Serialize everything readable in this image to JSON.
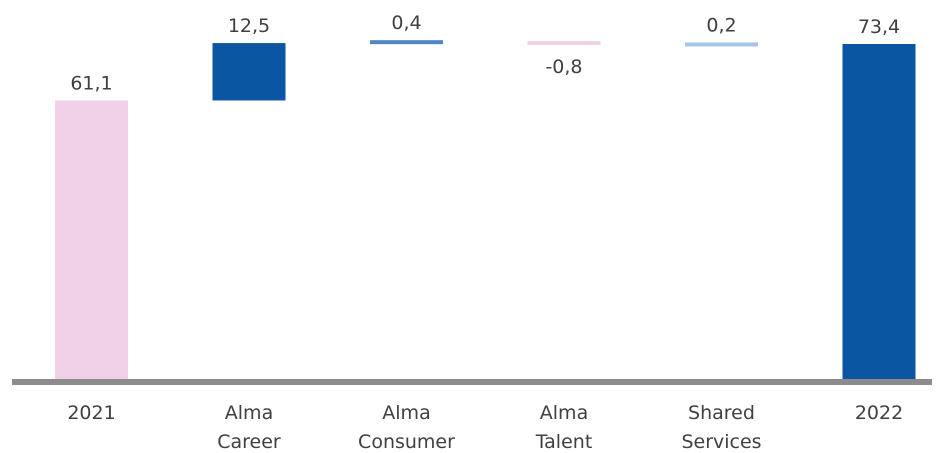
{
  "chart_data": {
    "type": "bar",
    "subtype": "waterfall",
    "title": "",
    "xlabel": "",
    "ylabel": "",
    "ylim": [
      0,
      75
    ],
    "grid": false,
    "legend": "none",
    "categories": [
      [
        "2021"
      ],
      [
        "Alma",
        "Career"
      ],
      [
        "Alma",
        "Consumer"
      ],
      [
        "Alma",
        "Talent"
      ],
      [
        "Shared",
        "Services"
      ],
      [
        "2022"
      ]
    ],
    "bars": [
      {
        "kind": "total",
        "value": 61.1,
        "label": "61,1",
        "color": "#f1d1e8"
      },
      {
        "kind": "delta",
        "value": 12.5,
        "label": "12,5",
        "color": "#0b56a3"
      },
      {
        "kind": "delta",
        "value": 0.4,
        "label": "0,4",
        "color": "#4f87c6"
      },
      {
        "kind": "delta",
        "value": -0.8,
        "label": "-0,8",
        "color": "#f1d1e8"
      },
      {
        "kind": "delta",
        "value": 0.2,
        "label": "0,2",
        "color": "#a8c5e6"
      },
      {
        "kind": "total",
        "value": 73.4,
        "label": "73,4",
        "color": "#0b56a3"
      }
    ],
    "colors": {
      "axis": "#8c8c8c",
      "text": "#404040"
    }
  }
}
